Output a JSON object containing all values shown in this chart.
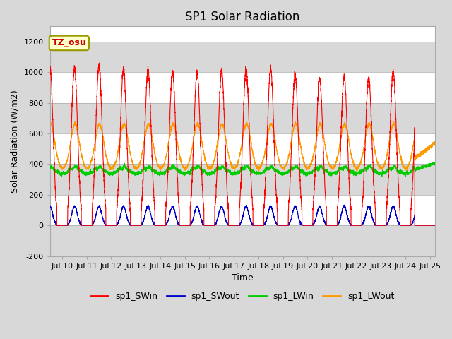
{
  "title": "SP1 Solar Radiation",
  "ylabel": "Solar Radiation (W/m2)",
  "xlabel": "Time",
  "ylim": [
    -200,
    1300
  ],
  "yticks": [
    -200,
    0,
    200,
    400,
    600,
    800,
    1000,
    1200
  ],
  "xlim_days": [
    9.5,
    25.2
  ],
  "xtick_positions": [
    10,
    11,
    12,
    13,
    14,
    15,
    16,
    17,
    18,
    19,
    20,
    21,
    22,
    23,
    24,
    25
  ],
  "xtick_labels": [
    "Jul 10",
    "Jul 11",
    "Jul 12",
    "Jul 13",
    "Jul 14",
    "Jul 15",
    "Jul 16",
    "Jul 17",
    "Jul 18",
    "Jul 19",
    "Jul 20",
    "Jul 21",
    "Jul 22",
    "Jul 23",
    "Jul 24",
    "Jul 25"
  ],
  "colors": {
    "SWin": "#ff0000",
    "SWout": "#0000cc",
    "LWin": "#00cc00",
    "LWout": "#ff9900"
  },
  "legend_labels": [
    "sp1_SWin",
    "sp1_SWout",
    "sp1_LWin",
    "sp1_LWout"
  ],
  "figure_bg": "#d8d8d8",
  "plot_bg": "#ffffff",
  "band_color": "#d8d8d8",
  "grid_color": "#aaaaaa",
  "annotation_text": "TZ_osu",
  "annotation_bg": "#ffffcc",
  "annotation_border": "#999900",
  "annotation_text_color": "#cc0000",
  "title_fontsize": 12,
  "axis_fontsize": 9,
  "tick_fontsize": 8,
  "legend_fontsize": 9
}
